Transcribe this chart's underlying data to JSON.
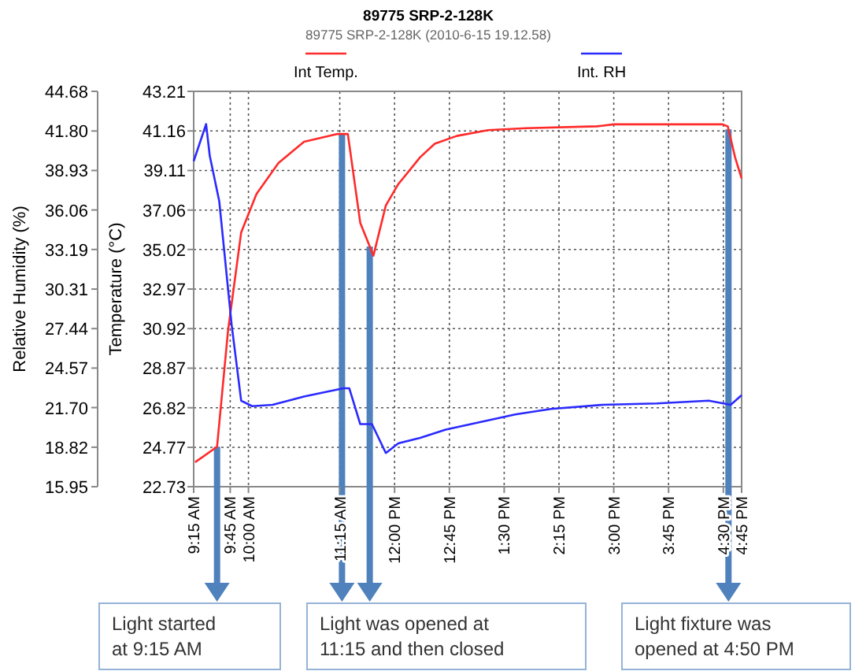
{
  "chart_data": {
    "type": "line",
    "title": "89775 SRP-2-128K",
    "subtitle": "89775 SRP-2-128K (2010-6-15 19.12.58)",
    "ylabel": "Temperature (°C)",
    "y2label": "Relative Humidity (%)",
    "xlim": [
      9.25,
      16.75
    ],
    "xticks": [
      {
        "value": 9.25,
        "label": "9:15 AM"
      },
      {
        "value": 9.75,
        "label": "9:45 AM"
      },
      {
        "value": 10,
        "label": "10:00 AM"
      },
      {
        "value": 11.25,
        "label": "11:15 AM"
      },
      {
        "value": 12,
        "label": "12:00 PM"
      },
      {
        "value": 12.75,
        "label": "12:45 PM"
      },
      {
        "value": 13.5,
        "label": "1:30 PM"
      },
      {
        "value": 14.25,
        "label": "2:15 PM"
      },
      {
        "value": 15,
        "label": "3:00 PM"
      },
      {
        "value": 15.75,
        "label": "3:45 PM"
      },
      {
        "value": 16.5,
        "label": "4:30 PM"
      },
      {
        "value": 16.75,
        "label": "4:45 PM"
      }
    ],
    "ylim": [
      22.73,
      43.21
    ],
    "yticks": [
      22.73,
      24.77,
      26.82,
      28.87,
      30.92,
      32.97,
      35.02,
      37.06,
      39.11,
      41.16,
      43.21
    ],
    "y2lim": [
      15.95,
      44.68
    ],
    "y2ticks": [
      15.95,
      18.82,
      {
        "value": 21.7,
        "label": "21.70"
      },
      24.57,
      27.44,
      30.31,
      33.19,
      36.06,
      38.93,
      {
        "value": 41.8,
        "label": "41.80"
      },
      44.68
    ],
    "grid": true,
    "legend": "top",
    "line_style": "solid",
    "marker": "none",
    "series": [
      {
        "name": "Int Temp.",
        "color": "#ff2a2a",
        "x": [
          9.27,
          9.57,
          9.72,
          9.9,
          10.11,
          10.41,
          10.76,
          11.21,
          11.36,
          11.53,
          11.71,
          11.88,
          12.05,
          12.35,
          12.55,
          12.85,
          13.28,
          13.8,
          14.77,
          15.0,
          16.49,
          16.56,
          16.66,
          16.75
        ],
        "values": [
          24.0,
          24.8,
          30.8,
          35.9,
          37.9,
          39.5,
          40.6,
          41.0,
          41.0,
          36.4,
          34.7,
          37.3,
          38.4,
          39.8,
          40.5,
          40.9,
          41.2,
          41.3,
          41.4,
          41.5,
          41.5,
          41.4,
          39.8,
          38.7
        ]
      },
      {
        "name": "Int. RH",
        "color": "#2a2aff",
        "axis": "y2",
        "x": [
          9.25,
          9.42,
          9.47,
          9.6,
          9.77,
          9.9,
          10.05,
          10.33,
          10.76,
          11.3,
          11.38,
          11.53,
          11.69,
          11.88,
          12.05,
          12.35,
          12.7,
          13.65,
          14.14,
          14.85,
          15.59,
          16.3,
          16.6,
          16.75
        ],
        "values": [
          39.6,
          42.3,
          40.0,
          36.7,
          27.7,
          22.2,
          21.8,
          21.9,
          22.5,
          23.1,
          23.1,
          20.5,
          20.5,
          18.4,
          19.1,
          19.5,
          20.1,
          21.2,
          21.6,
          21.9,
          22.0,
          22.2,
          21.9,
          22.6
        ]
      }
    ],
    "ref_lines": [
      {
        "axis": "x",
        "value": 9.57,
        "color": "#4f81bd"
      },
      {
        "axis": "x",
        "value": 11.28,
        "color": "#4f81bd"
      },
      {
        "axis": "x",
        "value": 11.66,
        "color": "#4f81bd"
      },
      {
        "axis": "x",
        "value": 16.57,
        "color": "#4f81bd"
      }
    ],
    "annotations": [
      "Light started\nat 9:15 AM",
      "Light was opened at\n11:15 and then closed",
      "Light fixture was\nopened at 4:50 PM"
    ]
  }
}
